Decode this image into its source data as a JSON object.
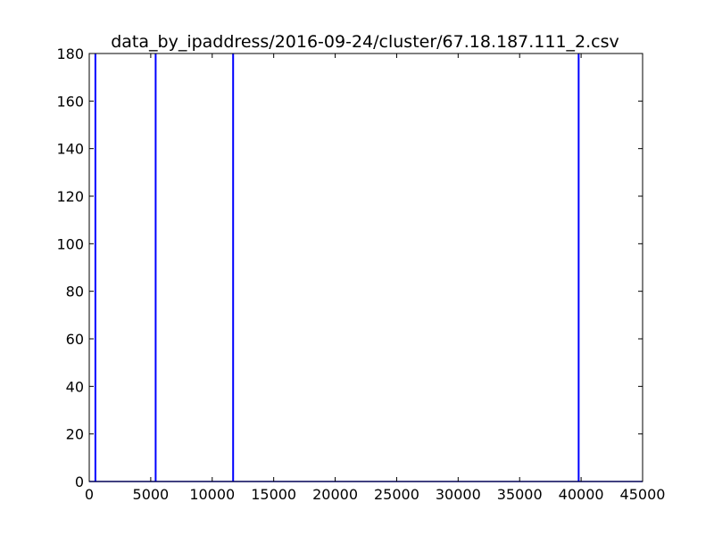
{
  "chart_data": {
    "type": "line",
    "title": "data_by_ipaddress/2016-09-24/cluster/67.18.187.111_2.csv",
    "xlabel": "",
    "ylabel": "",
    "xlim": [
      0,
      45000
    ],
    "ylim": [
      0,
      180
    ],
    "x_ticks": [
      0,
      5000,
      10000,
      15000,
      20000,
      25000,
      30000,
      35000,
      40000,
      45000
    ],
    "y_ticks": [
      0,
      20,
      40,
      60,
      80,
      100,
      120,
      140,
      160,
      180
    ],
    "grid": false,
    "legend": "none",
    "line_color": "#0000ff",
    "spikes": [
      {
        "x": 500,
        "y": 180
      },
      {
        "x": 5400,
        "y": 180
      },
      {
        "x": 11700,
        "y": 180
      },
      {
        "x": 39800,
        "y": 180
      }
    ],
    "baseline_y": 0
  }
}
